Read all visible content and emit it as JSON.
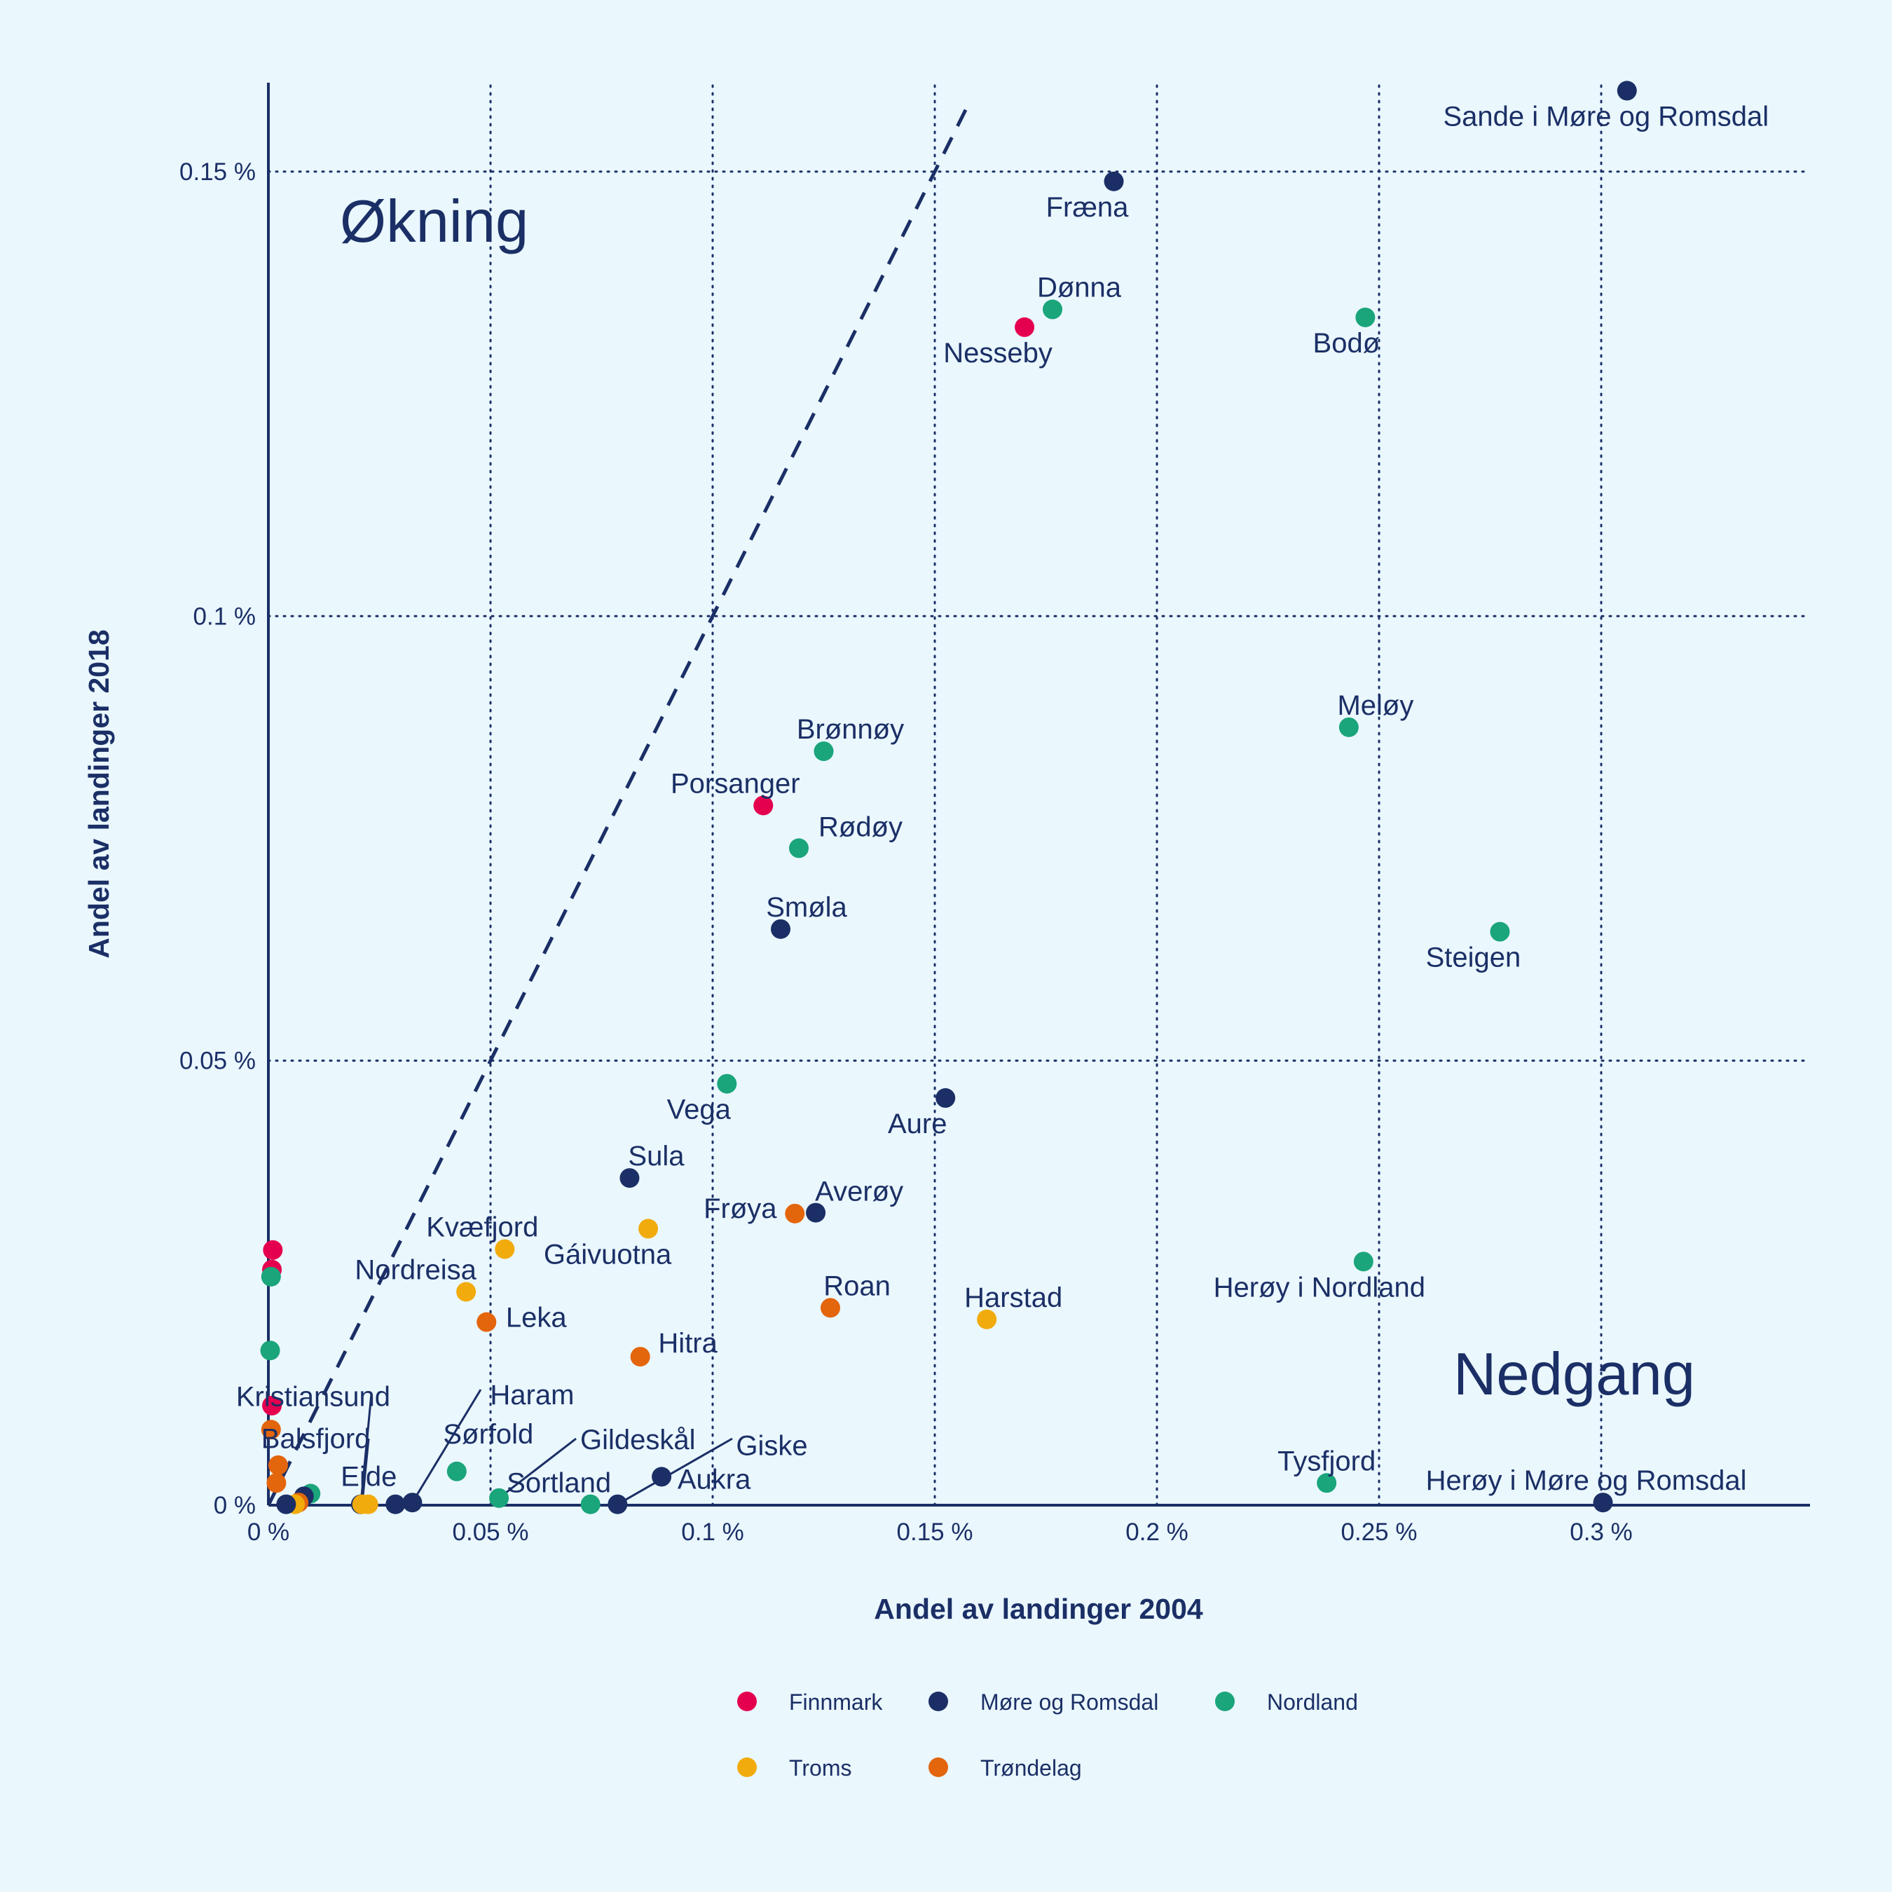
{
  "chart_data": {
    "type": "scatter",
    "title": "",
    "xlabel": "Andel av landinger 2004",
    "ylabel": "Andel av landinger 2018",
    "xlim": [
      0,
      0.00347
    ],
    "ylim": [
      0,
      0.0016
    ],
    "x_ticks": [
      {
        "value": 0,
        "label": "0 %"
      },
      {
        "value": 0.0005,
        "label": "0.05 %"
      },
      {
        "value": 0.001,
        "label": "0.1 %"
      },
      {
        "value": 0.0015,
        "label": "0.15 %"
      },
      {
        "value": 0.002,
        "label": "0.2 %"
      },
      {
        "value": 0.0025,
        "label": "0.25 %"
      },
      {
        "value": 0.003,
        "label": "0.3 %"
      }
    ],
    "y_ticks": [
      {
        "value": 0,
        "label": "0 %"
      },
      {
        "value": 0.0005,
        "label": "0.05 %"
      },
      {
        "value": 0.001,
        "label": "0.1 %"
      },
      {
        "value": 0.0015,
        "label": "0.15 %"
      }
    ],
    "grid": "dotted",
    "reference_line": {
      "style": "dashed",
      "from": [
        0,
        0
      ],
      "to": [
        0.00157,
        0.00157
      ]
    },
    "region_labels": [
      "Økning",
      "Nedgang"
    ],
    "legend": {
      "placement": "bottom",
      "entries": [
        {
          "name": "Finnmark",
          "color": "#e5004f"
        },
        {
          "name": "Møre og Romsdal",
          "color": "#1b2f66"
        },
        {
          "name": "Nordland",
          "color": "#1aa57a"
        },
        {
          "name": "Troms",
          "color": "#f2ab0c"
        },
        {
          "name": "Trøndelag",
          "color": "#e3650c"
        }
      ]
    },
    "points": [
      {
        "label": "Sande i Møre og Romsdal",
        "county": "Møre og Romsdal",
        "x": 0.003058,
        "y": 0.001591
      },
      {
        "label": "Fræna",
        "county": "Møre og Romsdal",
        "x": 0.001903,
        "y": 0.001489
      },
      {
        "label": "Dønna",
        "county": "Nordland",
        "x": 0.001765,
        "y": 0.001345
      },
      {
        "label": "Nesseby",
        "county": "Finnmark",
        "x": 0.001702,
        "y": 0.001325
      },
      {
        "label": "Bodø",
        "county": "Nordland",
        "x": 0.002469,
        "y": 0.001336
      },
      {
        "label": "Meløy",
        "county": "Nordland",
        "x": 0.002432,
        "y": 0.000875
      },
      {
        "label": "Brønnøy",
        "county": "Nordland",
        "x": 0.00125,
        "y": 0.000848
      },
      {
        "label": "Porsanger",
        "county": "Finnmark",
        "x": 0.001114,
        "y": 0.000787
      },
      {
        "label": "Rødøy",
        "county": "Nordland",
        "x": 0.001194,
        "y": 0.000739
      },
      {
        "label": "Smøla",
        "county": "Møre og Romsdal",
        "x": 0.001153,
        "y": 0.000648
      },
      {
        "label": "Steigen",
        "county": "Nordland",
        "x": 0.002772,
        "y": 0.000645
      },
      {
        "label": "Vega",
        "county": "Nordland",
        "x": 0.001032,
        "y": 0.000474
      },
      {
        "label": "Aure",
        "county": "Møre og Romsdal",
        "x": 0.001524,
        "y": 0.000458
      },
      {
        "label": "Sula",
        "county": "Møre og Romsdal",
        "x": 0.000813,
        "y": 0.000368
      },
      {
        "label": "Averøy",
        "county": "Møre og Romsdal",
        "x": 0.001232,
        "y": 0.000329
      },
      {
        "label": "Frøya",
        "county": "Trøndelag",
        "x": 0.001185,
        "y": 0.000328
      },
      {
        "label": "Gáivuotna",
        "county": "Troms",
        "x": 0.000855,
        "y": 0.000311
      },
      {
        "label": "Kvæfjord",
        "county": "Troms",
        "x": 0.000532,
        "y": 0.000288
      },
      {
        "label": "Herøy i Nordland",
        "county": "Nordland",
        "x": 0.002465,
        "y": 0.000274
      },
      {
        "label": "Nordreisa",
        "county": "Troms",
        "x": 0.000445,
        "y": 0.00024
      },
      {
        "label": "Roan",
        "county": "Trøndelag",
        "x": 0.001265,
        "y": 0.000222
      },
      {
        "label": "Harstad",
        "county": "Troms",
        "x": 0.001617,
        "y": 0.000209
      },
      {
        "label": "Leka",
        "county": "Trøndelag",
        "x": 0.000491,
        "y": 0.000206
      },
      {
        "label": "Hitra",
        "county": "Trøndelag",
        "x": 0.000837,
        "y": 0.000167
      },
      {
        "label": "Tysfjord",
        "county": "Nordland",
        "x": 0.002382,
        "y": 2.5e-05
      },
      {
        "label": "Herøy i Møre og Romsdal",
        "county": "Møre og Romsdal",
        "x": 0.003004,
        "y": 3e-06
      },
      {
        "label": "Kristiansund",
        "county": "Møre og Romsdal",
        "x": 0.000208,
        "y": 1e-06
      },
      {
        "label": "Balsfjord",
        "county": "Troms",
        "x": 0.000211,
        "y": 1e-06
      },
      {
        "label": "Eide",
        "county": "Møre og Romsdal",
        "x": 0.000286,
        "y": 1e-06
      },
      {
        "label": "Haram",
        "county": "Møre og Romsdal",
        "x": 0.000324,
        "y": 3e-06
      },
      {
        "label": "Sørfold",
        "county": "Nordland",
        "x": 0.000424,
        "y": 3.8e-05
      },
      {
        "label": "Gildeskål",
        "county": "Nordland",
        "x": 0.000519,
        "y": 8e-06
      },
      {
        "label": "Sortland",
        "county": "Nordland",
        "x": 0.000725,
        "y": 1e-06
      },
      {
        "label": "Giske",
        "county": "Møre og Romsdal",
        "x": 0.000786,
        "y": 1e-06
      },
      {
        "label": "Aukra",
        "county": "Møre og Romsdal",
        "x": 0.000885,
        "y": 3.2e-05
      },
      {
        "label": "",
        "county": "Finnmark",
        "x": 1e-05,
        "y": 0.000287
      },
      {
        "label": "",
        "county": "Finnmark",
        "x": 8e-06,
        "y": 0.000265
      },
      {
        "label": "",
        "county": "Nordland",
        "x": 6e-06,
        "y": 0.000257
      },
      {
        "label": "",
        "county": "Nordland",
        "x": 4e-06,
        "y": 0.000174
      },
      {
        "label": "",
        "county": "Finnmark",
        "x": 8e-06,
        "y": 0.000112
      },
      {
        "label": "",
        "county": "Trøndelag",
        "x": 6e-06,
        "y": 8.5e-05
      },
      {
        "label": "",
        "county": "Trøndelag",
        "x": 2.2e-05,
        "y": 4.5e-05
      },
      {
        "label": "",
        "county": "Trøndelag",
        "x": 1.8e-05,
        "y": 2.5e-05
      },
      {
        "label": "",
        "county": "Nordland",
        "x": 9.5e-05,
        "y": 1.3e-05
      },
      {
        "label": "",
        "county": "Møre og Romsdal",
        "x": 8e-05,
        "y": 1e-05
      },
      {
        "label": "",
        "county": "Trøndelag",
        "x": 6.8e-05,
        "y": 3e-06
      },
      {
        "label": "",
        "county": "Troms",
        "x": 6e-05,
        "y": 1e-06
      },
      {
        "label": "",
        "county": "Møre og Romsdal",
        "x": 4e-05,
        "y": 1e-06
      },
      {
        "label": "",
        "county": "Troms",
        "x": 0.000225,
        "y": 1e-06
      }
    ]
  }
}
